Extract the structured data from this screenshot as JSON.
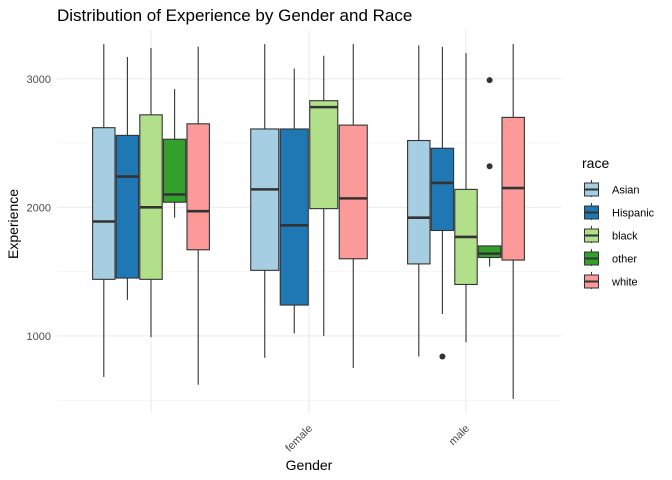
{
  "chart_data": {
    "type": "boxplot",
    "title": "Distribution of Experience by Gender and Race",
    "xlabel": "Gender",
    "ylabel": "Experience",
    "categories": [
      "",
      "female",
      "male"
    ],
    "yticks": [
      1000,
      2000,
      3000
    ],
    "ylim": [
      400,
      3380
    ],
    "grid": true,
    "legend": {
      "title": "race",
      "position": "right",
      "entries": [
        "Asian",
        "Hispanic",
        "black",
        "other",
        "white"
      ]
    },
    "series": [
      {
        "name": "Asian",
        "color": "#a6cee3",
        "boxes": [
          {
            "category": "",
            "min": 680,
            "q1": 1440,
            "median": 1890,
            "q3": 2620,
            "max": 3270,
            "outliers": []
          },
          {
            "category": "female",
            "min": 830,
            "q1": 1510,
            "median": 2140,
            "q3": 2610,
            "max": 3270,
            "outliers": []
          },
          {
            "category": "male",
            "min": 840,
            "q1": 1560,
            "median": 1920,
            "q3": 2520,
            "max": 3260,
            "outliers": []
          }
        ]
      },
      {
        "name": "Hispanic",
        "color": "#1f78b4",
        "boxes": [
          {
            "category": "",
            "min": 1280,
            "q1": 1450,
            "median": 2240,
            "q3": 2560,
            "max": 3170,
            "outliers": []
          },
          {
            "category": "female",
            "min": 1020,
            "q1": 1240,
            "median": 1860,
            "q3": 2610,
            "max": 3080,
            "outliers": []
          },
          {
            "category": "male",
            "min": 1170,
            "q1": 1820,
            "median": 2190,
            "q3": 2460,
            "max": 3250,
            "outliers": [
              840
            ]
          }
        ]
      },
      {
        "name": "black",
        "color": "#b2df8a",
        "boxes": [
          {
            "category": "",
            "min": 990,
            "q1": 1440,
            "median": 2000,
            "q3": 2720,
            "max": 3240,
            "outliers": []
          },
          {
            "category": "female",
            "min": 1000,
            "q1": 1990,
            "median": 2780,
            "q3": 2830,
            "max": 3180,
            "outliers": []
          },
          {
            "category": "male",
            "min": 950,
            "q1": 1400,
            "median": 1770,
            "q3": 2140,
            "max": 3200,
            "outliers": []
          }
        ]
      },
      {
        "name": "other",
        "color": "#33a02c",
        "boxes": [
          {
            "category": "",
            "min": 1920,
            "q1": 2040,
            "median": 2100,
            "q3": 2530,
            "max": 2920,
            "outliers": []
          },
          {
            "category": "male",
            "min": 1540,
            "q1": 1610,
            "median": 1640,
            "q3": 1700,
            "max": 1700,
            "outliers": [
              2320,
              2990
            ]
          }
        ]
      },
      {
        "name": "white",
        "color": "#fb9a99",
        "boxes": [
          {
            "category": "",
            "min": 620,
            "q1": 1670,
            "median": 1970,
            "q3": 2650,
            "max": 3250,
            "outliers": []
          },
          {
            "category": "female",
            "min": 750,
            "q1": 1600,
            "median": 2070,
            "q3": 2640,
            "max": 3270,
            "outliers": []
          },
          {
            "category": "male",
            "min": 510,
            "q1": 1590,
            "median": 2150,
            "q3": 2700,
            "max": 3270,
            "outliers": []
          }
        ]
      }
    ]
  }
}
